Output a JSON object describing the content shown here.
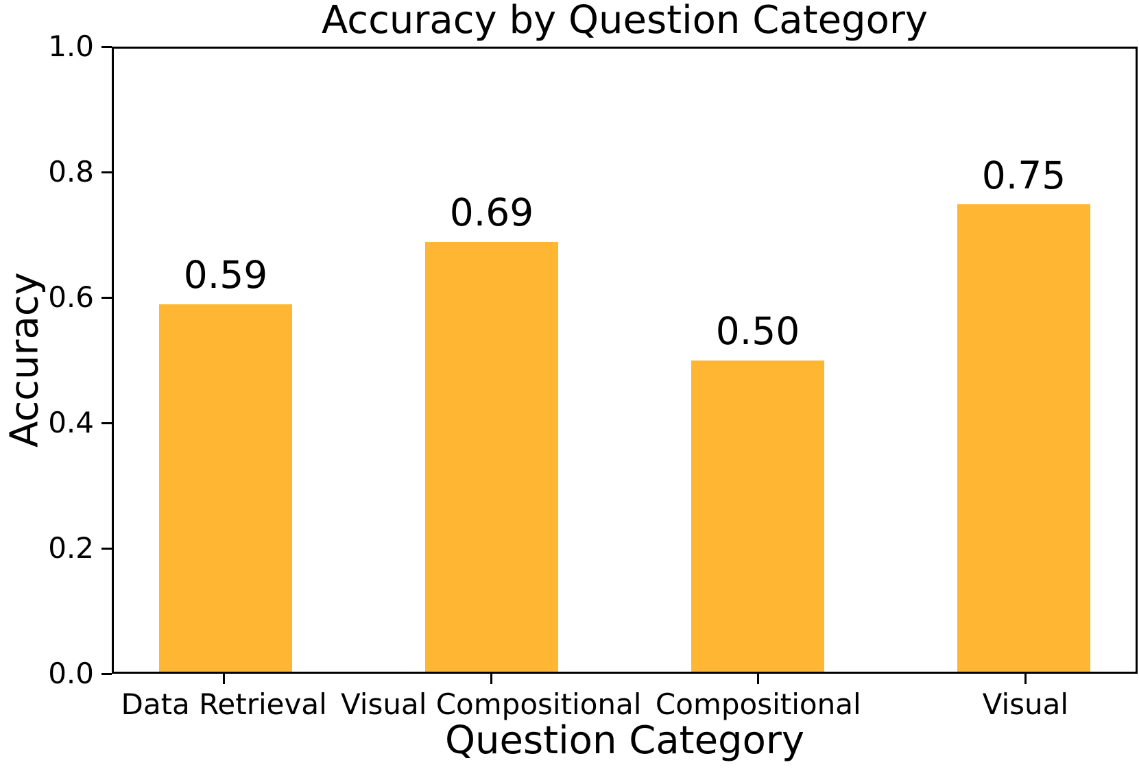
{
  "chart_data": {
    "type": "bar",
    "title": "Accuracy by Question Category",
    "xlabel": "Question Category",
    "ylabel": "Accuracy",
    "categories": [
      "Data Retrieval",
      "Visual Compositional",
      "Compositional",
      "Visual"
    ],
    "values": [
      0.59,
      0.69,
      0.5,
      0.75
    ],
    "value_labels": [
      "0.59",
      "0.69",
      "0.50",
      "0.75"
    ],
    "yticks": [
      "0.0",
      "0.2",
      "0.4",
      "0.6",
      "0.8",
      "1.0"
    ],
    "ylim": [
      0.0,
      1.0
    ],
    "xlim": [
      -0.42,
      3.42
    ],
    "bar_width": 0.5,
    "bar_color": "#FFB733",
    "axis_color": "#000000",
    "text_color": "#000000",
    "background_color": "#FFFFFF",
    "grid": false
  }
}
